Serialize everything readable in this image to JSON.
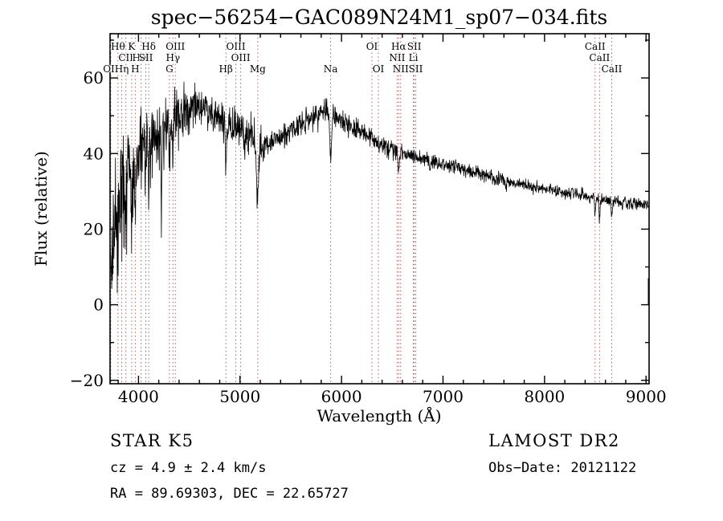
{
  "title": "spec−56254−GAC089N24M1_sp07−034.fits",
  "footer": {
    "class_label": "STAR   K5",
    "cz": "cz = 4.9 ± 2.4 km/s",
    "radec": "RA =  89.69303, DEC =  22.65727",
    "survey": "LAMOST DR2",
    "obsdate": "Obs−Date: 20121122"
  },
  "chart_data": {
    "type": "line",
    "title": "spec−56254−GAC089N24M1_sp07−034.fits",
    "xlabel": "Wavelength (Å)",
    "ylabel": "Flux (relative)",
    "xlim": [
      3720,
      9030
    ],
    "ylim": [
      -20.9,
      71.7
    ],
    "grid": false,
    "legend": "none",
    "line_color": "#000000",
    "marker_color": "#aa6060",
    "xticks": [
      {
        "value": 4000,
        "label": "4000"
      },
      {
        "value": 5000,
        "label": "5000"
      },
      {
        "value": 6000,
        "label": "6000"
      },
      {
        "value": 7000,
        "label": "7000"
      },
      {
        "value": 8000,
        "label": "8000"
      },
      {
        "value": 9000,
        "label": "9000"
      }
    ],
    "yticks": [
      {
        "value": -20,
        "label": "−20"
      },
      {
        "value": 0,
        "label": "0"
      },
      {
        "value": 20,
        "label": "20"
      },
      {
        "value": 40,
        "label": "40"
      },
      {
        "value": 60,
        "label": "60"
      }
    ],
    "x_minor_step": 200,
    "y_minor_step": 10,
    "spectral_lines": [
      {
        "wavelength": 3727,
        "label": "OII",
        "row": 3
      },
      {
        "wavelength": 3798,
        "label": "Hθ",
        "row": 1
      },
      {
        "wavelength": 3835,
        "label": "Hη",
        "row": 3
      },
      {
        "wavelength": 3876,
        "label": "CII",
        "row": 2
      },
      {
        "wavelength": 3933,
        "label": "K",
        "row": 1
      },
      {
        "wavelength": 3968,
        "label": "H",
        "row": 3
      },
      {
        "wavelength": 4026,
        "label": "HeI",
        "row": 2
      },
      {
        "wavelength": 4072,
        "label": "SII",
        "row": 2
      },
      {
        "wavelength": 4101,
        "label": "Hδ",
        "row": 1
      },
      {
        "wavelength": 4305,
        "label": "G",
        "row": 3
      },
      {
        "wavelength": 4340,
        "label": "Hγ",
        "row": 2
      },
      {
        "wavelength": 4363,
        "label": "OIII",
        "row": 1
      },
      {
        "wavelength": 4861,
        "label": "Hβ",
        "row": 3
      },
      {
        "wavelength": 4959,
        "label": "OIII",
        "row": 1
      },
      {
        "wavelength": 5007,
        "label": "OIII",
        "row": 2
      },
      {
        "wavelength": 5175,
        "label": "Mg",
        "row": 3
      },
      {
        "wavelength": 5893,
        "label": "Na",
        "row": 3
      },
      {
        "wavelength": 6300,
        "label": "OI",
        "row": 1
      },
      {
        "wavelength": 6363,
        "label": "OI",
        "row": 3
      },
      {
        "wavelength": 6548,
        "label": "NII",
        "row": 2
      },
      {
        "wavelength": 6563,
        "label": "Hα",
        "row": 1
      },
      {
        "wavelength": 6583,
        "label": "NII",
        "row": 3
      },
      {
        "wavelength": 6708,
        "label": "Li",
        "row": 2
      },
      {
        "wavelength": 6716,
        "label": "SII",
        "row": 1
      },
      {
        "wavelength": 6731,
        "label": "SII",
        "row": 3
      },
      {
        "wavelength": 8498,
        "label": "CaII",
        "row": 1
      },
      {
        "wavelength": 8542,
        "label": "CaII",
        "row": 2
      },
      {
        "wavelength": 8662,
        "label": "CaII",
        "row": 3
      }
    ],
    "spectrum": {
      "continuum": [
        [
          3720,
          8
        ],
        [
          3740,
          15
        ],
        [
          3760,
          19
        ],
        [
          3780,
          23
        ],
        [
          3800,
          26
        ],
        [
          3850,
          30
        ],
        [
          3900,
          33
        ],
        [
          3950,
          35
        ],
        [
          4000,
          40
        ],
        [
          4050,
          42
        ],
        [
          4100,
          44
        ],
        [
          4150,
          45
        ],
        [
          4200,
          46
        ],
        [
          4250,
          46.5
        ],
        [
          4300,
          47
        ],
        [
          4350,
          48.5
        ],
        [
          4400,
          50
        ],
        [
          4450,
          51
        ],
        [
          4500,
          52
        ],
        [
          4550,
          52.5
        ],
        [
          4600,
          53
        ],
        [
          4650,
          52
        ],
        [
          4700,
          51
        ],
        [
          4750,
          50
        ],
        [
          4800,
          49
        ],
        [
          4860,
          48
        ],
        [
          4900,
          47.5
        ],
        [
          4950,
          47
        ],
        [
          5000,
          46.5
        ],
        [
          5050,
          45
        ],
        [
          5100,
          44
        ],
        [
          5150,
          43
        ],
        [
          5200,
          42.5
        ],
        [
          5250,
          42.5
        ],
        [
          5300,
          43
        ],
        [
          5350,
          43.8
        ],
        [
          5400,
          44.5
        ],
        [
          5450,
          45.2
        ],
        [
          5500,
          46
        ],
        [
          5550,
          46.8
        ],
        [
          5600,
          47.5
        ],
        [
          5650,
          48.2
        ],
        [
          5700,
          49
        ],
        [
          5750,
          50
        ],
        [
          5800,
          51.5
        ],
        [
          5850,
          51
        ],
        [
          5900,
          50
        ],
        [
          5950,
          49.5
        ],
        [
          6000,
          48.5
        ],
        [
          6100,
          47
        ],
        [
          6200,
          45.5
        ],
        [
          6300,
          44
        ],
        [
          6400,
          42.5
        ],
        [
          6500,
          41
        ],
        [
          6600,
          40
        ],
        [
          6700,
          39.2
        ],
        [
          6800,
          38.5
        ],
        [
          6900,
          38
        ],
        [
          7000,
          37.2
        ],
        [
          7100,
          36.5
        ],
        [
          7200,
          35.8
        ],
        [
          7300,
          35
        ],
        [
          7400,
          34.3
        ],
        [
          7500,
          33.6
        ],
        [
          7600,
          33
        ],
        [
          7700,
          32.4
        ],
        [
          7800,
          31.8
        ],
        [
          7900,
          31.2
        ],
        [
          8000,
          30.7
        ],
        [
          8100,
          30.2
        ],
        [
          8200,
          29.7
        ],
        [
          8300,
          29.2
        ],
        [
          8400,
          28.8
        ],
        [
          8500,
          28.3
        ],
        [
          8600,
          27.8
        ],
        [
          8700,
          27.4
        ],
        [
          8800,
          27
        ],
        [
          8900,
          26.7
        ],
        [
          9000,
          26.5
        ],
        [
          9030,
          27
        ]
      ],
      "absorption_features": [
        [
          3798,
          6,
          4
        ],
        [
          3835,
          6,
          4
        ],
        [
          3876,
          4,
          4
        ],
        [
          3933,
          13,
          5
        ],
        [
          3968,
          11,
          5
        ],
        [
          4026,
          4,
          4
        ],
        [
          4072,
          4,
          4
        ],
        [
          4101,
          14,
          5
        ],
        [
          4226,
          26,
          4
        ],
        [
          4305,
          7,
          8
        ],
        [
          4340,
          8,
          5
        ],
        [
          4861,
          9,
          6
        ],
        [
          5175,
          14,
          11
        ],
        [
          5893,
          12,
          7
        ],
        [
          6563,
          5,
          6
        ],
        [
          6870,
          2,
          7
        ],
        [
          7620,
          2.5,
          8
        ],
        [
          8498,
          4,
          5
        ],
        [
          8542,
          5,
          5
        ],
        [
          8662,
          4,
          5
        ]
      ],
      "noise_sigma": [
        [
          3720,
          3900,
          7
        ],
        [
          3900,
          4150,
          5
        ],
        [
          4150,
          4450,
          3.5
        ],
        [
          4450,
          5250,
          2.6
        ],
        [
          5250,
          5950,
          1.8
        ],
        [
          5950,
          6600,
          1.3
        ],
        [
          6600,
          7600,
          0.9
        ],
        [
          7600,
          9030,
          0.8
        ]
      ],
      "blue_spike": {
        "max_wavelength": 4450,
        "probability": 0.07,
        "max_depth": 26
      },
      "edge_artifact": {
        "wavelength": 9022,
        "flux_range": [
          0,
          7
        ]
      },
      "seed": 42,
      "sample_step": 3
    }
  }
}
